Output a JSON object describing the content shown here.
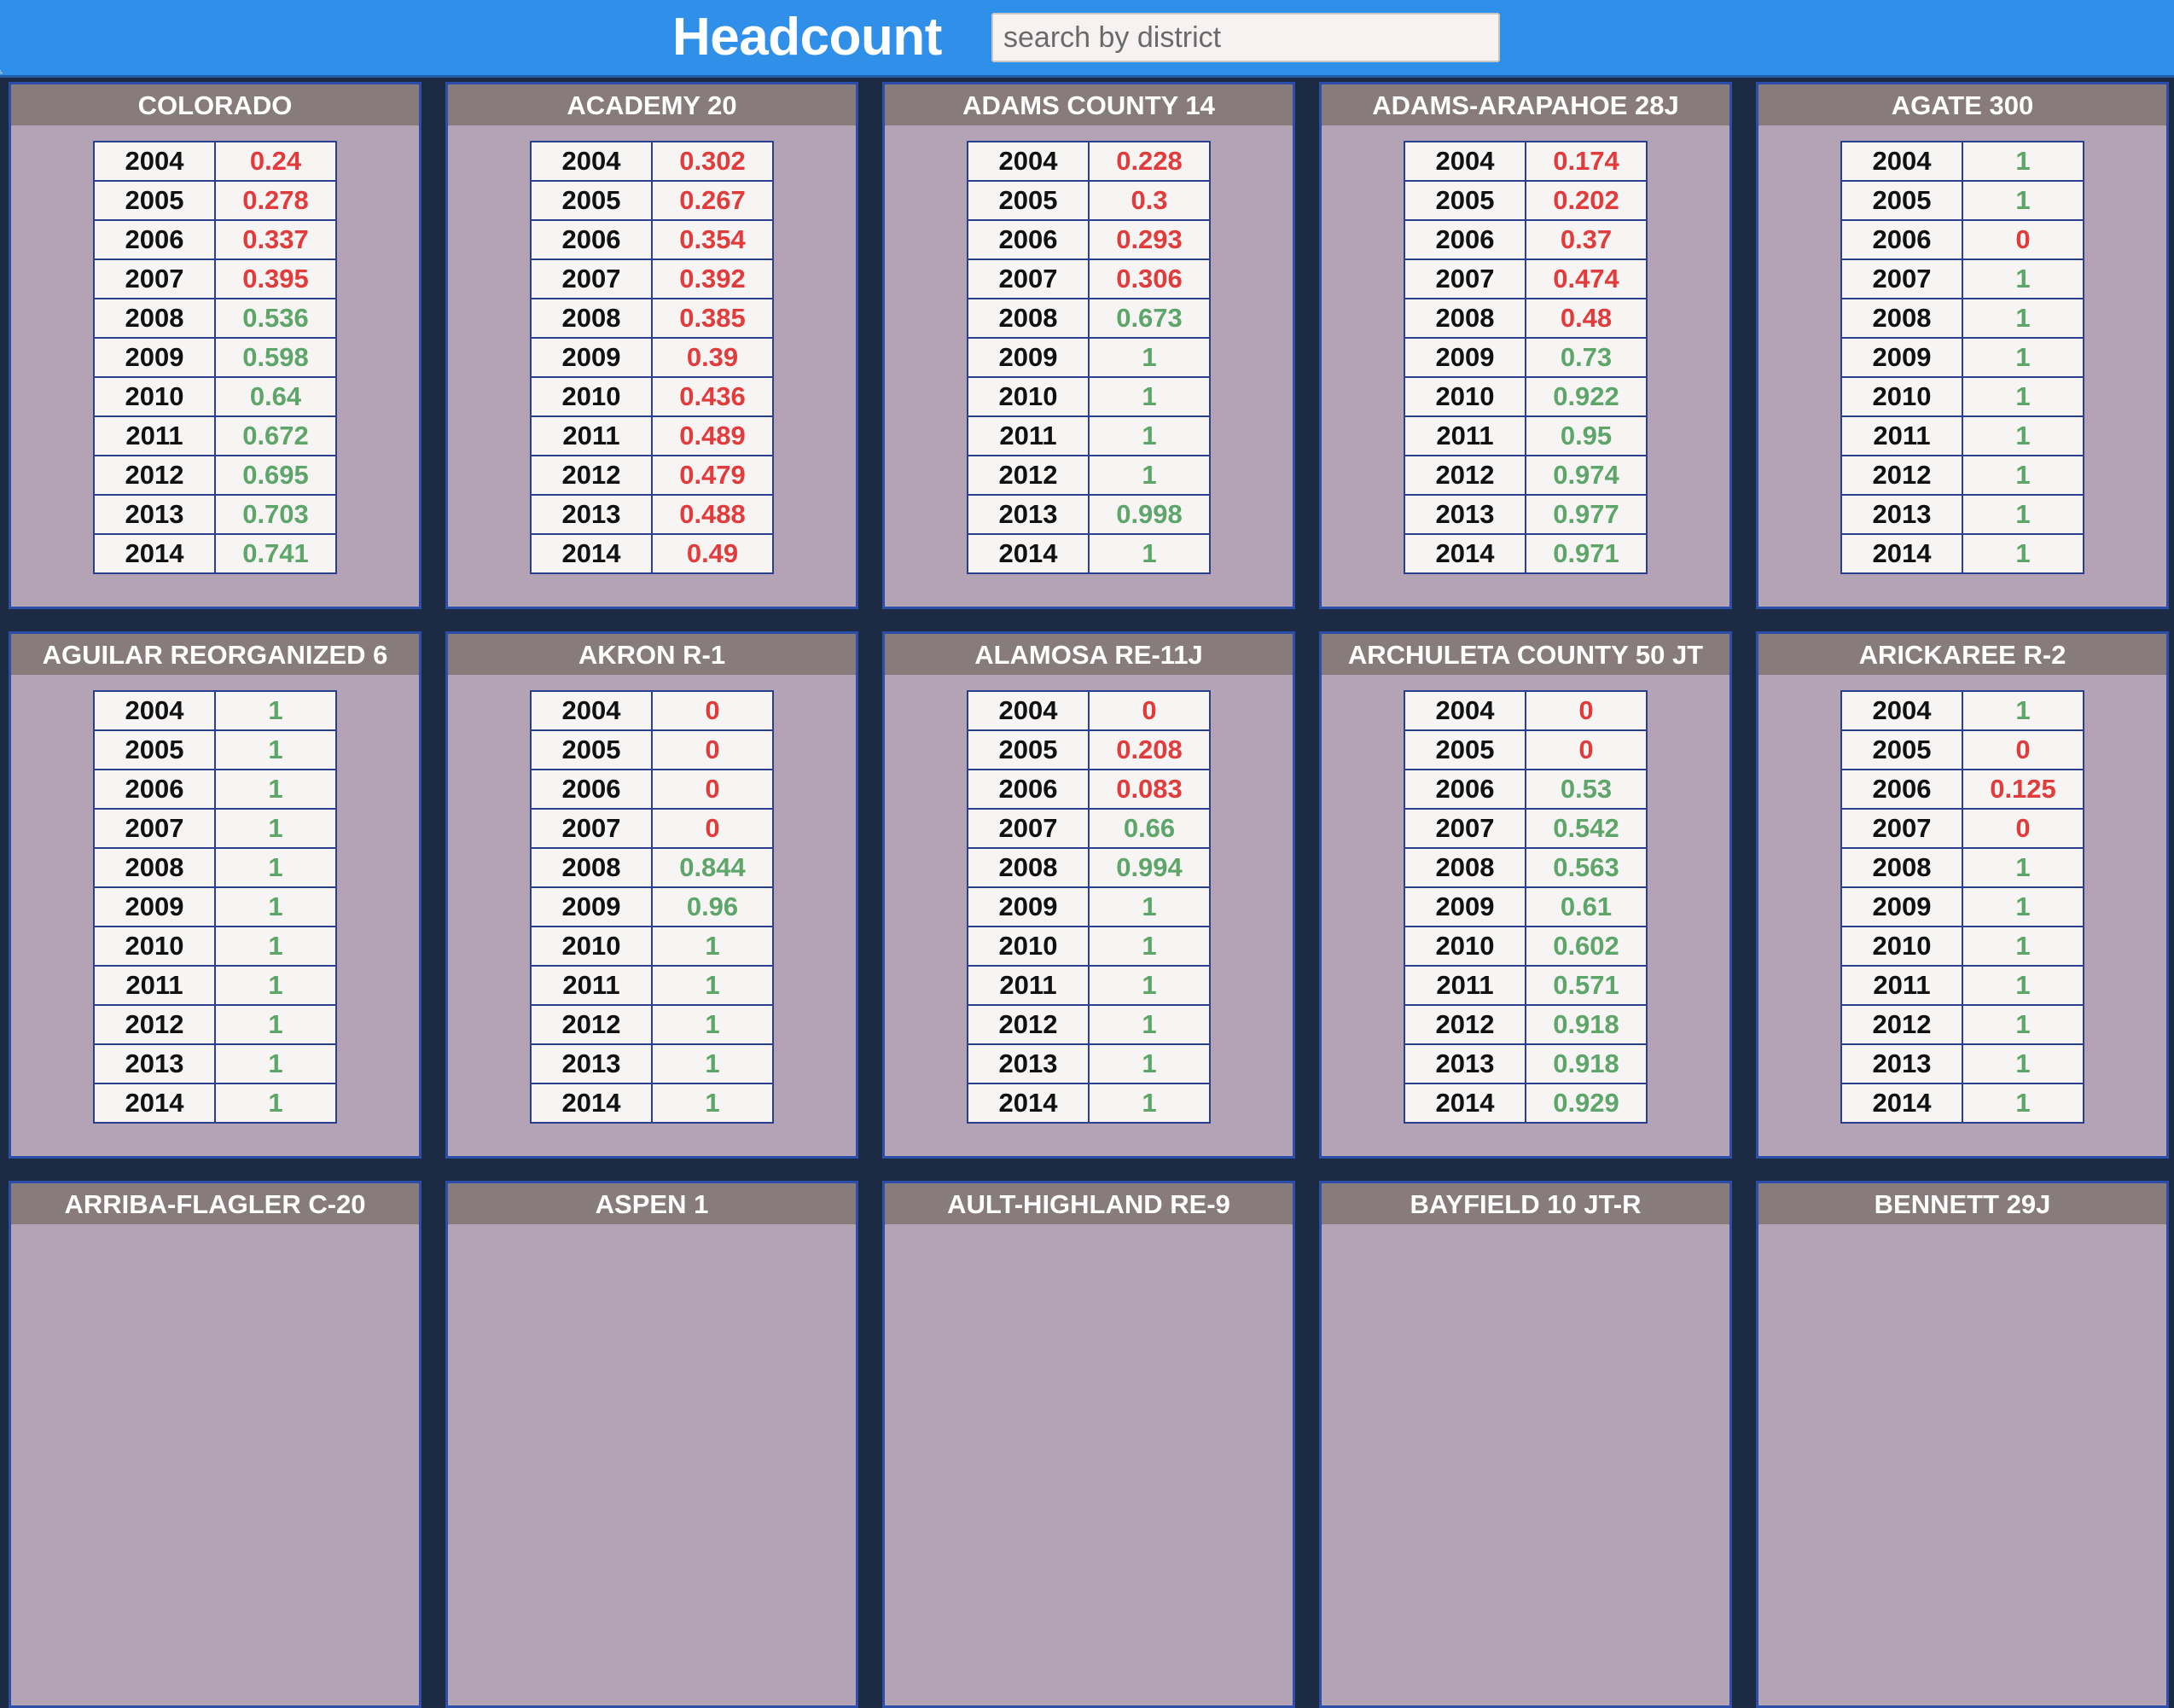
{
  "header": {
    "title": "Headcount",
    "search_placeholder": "search by district"
  },
  "colors": {
    "low_value": "#e23b3b",
    "high_value": "#5ea56a",
    "header_bar": "#2f8fe9",
    "card_bg": "#b3a3b4",
    "card_title_bg": "#877b7c"
  },
  "districts": [
    {
      "name": "COLORADO",
      "rows": [
        [
          "2004",
          "0.24"
        ],
        [
          "2005",
          "0.278"
        ],
        [
          "2006",
          "0.337"
        ],
        [
          "2007",
          "0.395"
        ],
        [
          "2008",
          "0.536"
        ],
        [
          "2009",
          "0.598"
        ],
        [
          "2010",
          "0.64"
        ],
        [
          "2011",
          "0.672"
        ],
        [
          "2012",
          "0.695"
        ],
        [
          "2013",
          "0.703"
        ],
        [
          "2014",
          "0.741"
        ]
      ]
    },
    {
      "name": "ACADEMY 20",
      "rows": [
        [
          "2004",
          "0.302"
        ],
        [
          "2005",
          "0.267"
        ],
        [
          "2006",
          "0.354"
        ],
        [
          "2007",
          "0.392"
        ],
        [
          "2008",
          "0.385"
        ],
        [
          "2009",
          "0.39"
        ],
        [
          "2010",
          "0.436"
        ],
        [
          "2011",
          "0.489"
        ],
        [
          "2012",
          "0.479"
        ],
        [
          "2013",
          "0.488"
        ],
        [
          "2014",
          "0.49"
        ]
      ]
    },
    {
      "name": "ADAMS COUNTY 14",
      "rows": [
        [
          "2004",
          "0.228"
        ],
        [
          "2005",
          "0.3"
        ],
        [
          "2006",
          "0.293"
        ],
        [
          "2007",
          "0.306"
        ],
        [
          "2008",
          "0.673"
        ],
        [
          "2009",
          "1"
        ],
        [
          "2010",
          "1"
        ],
        [
          "2011",
          "1"
        ],
        [
          "2012",
          "1"
        ],
        [
          "2013",
          "0.998"
        ],
        [
          "2014",
          "1"
        ]
      ]
    },
    {
      "name": "ADAMS-ARAPAHOE 28J",
      "rows": [
        [
          "2004",
          "0.174"
        ],
        [
          "2005",
          "0.202"
        ],
        [
          "2006",
          "0.37"
        ],
        [
          "2007",
          "0.474"
        ],
        [
          "2008",
          "0.48"
        ],
        [
          "2009",
          "0.73"
        ],
        [
          "2010",
          "0.922"
        ],
        [
          "2011",
          "0.95"
        ],
        [
          "2012",
          "0.974"
        ],
        [
          "2013",
          "0.977"
        ],
        [
          "2014",
          "0.971"
        ]
      ]
    },
    {
      "name": "AGATE 300",
      "rows": [
        [
          "2004",
          "1"
        ],
        [
          "2005",
          "1"
        ],
        [
          "2006",
          "0"
        ],
        [
          "2007",
          "1"
        ],
        [
          "2008",
          "1"
        ],
        [
          "2009",
          "1"
        ],
        [
          "2010",
          "1"
        ],
        [
          "2011",
          "1"
        ],
        [
          "2012",
          "1"
        ],
        [
          "2013",
          "1"
        ],
        [
          "2014",
          "1"
        ]
      ]
    },
    {
      "name": "AGUILAR REORGANIZED 6",
      "rows": [
        [
          "2004",
          "1"
        ],
        [
          "2005",
          "1"
        ],
        [
          "2006",
          "1"
        ],
        [
          "2007",
          "1"
        ],
        [
          "2008",
          "1"
        ],
        [
          "2009",
          "1"
        ],
        [
          "2010",
          "1"
        ],
        [
          "2011",
          "1"
        ],
        [
          "2012",
          "1"
        ],
        [
          "2013",
          "1"
        ],
        [
          "2014",
          "1"
        ]
      ]
    },
    {
      "name": "AKRON R-1",
      "rows": [
        [
          "2004",
          "0"
        ],
        [
          "2005",
          "0"
        ],
        [
          "2006",
          "0"
        ],
        [
          "2007",
          "0"
        ],
        [
          "2008",
          "0.844"
        ],
        [
          "2009",
          "0.96"
        ],
        [
          "2010",
          "1"
        ],
        [
          "2011",
          "1"
        ],
        [
          "2012",
          "1"
        ],
        [
          "2013",
          "1"
        ],
        [
          "2014",
          "1"
        ]
      ]
    },
    {
      "name": "ALAMOSA RE-11J",
      "rows": [
        [
          "2004",
          "0"
        ],
        [
          "2005",
          "0.208"
        ],
        [
          "2006",
          "0.083"
        ],
        [
          "2007",
          "0.66"
        ],
        [
          "2008",
          "0.994"
        ],
        [
          "2009",
          "1"
        ],
        [
          "2010",
          "1"
        ],
        [
          "2011",
          "1"
        ],
        [
          "2012",
          "1"
        ],
        [
          "2013",
          "1"
        ],
        [
          "2014",
          "1"
        ]
      ]
    },
    {
      "name": "ARCHULETA COUNTY 50 JT",
      "rows": [
        [
          "2004",
          "0"
        ],
        [
          "2005",
          "0"
        ],
        [
          "2006",
          "0.53"
        ],
        [
          "2007",
          "0.542"
        ],
        [
          "2008",
          "0.563"
        ],
        [
          "2009",
          "0.61"
        ],
        [
          "2010",
          "0.602"
        ],
        [
          "2011",
          "0.571"
        ],
        [
          "2012",
          "0.918"
        ],
        [
          "2013",
          "0.918"
        ],
        [
          "2014",
          "0.929"
        ]
      ]
    },
    {
      "name": "ARICKAREE R-2",
      "rows": [
        [
          "2004",
          "1"
        ],
        [
          "2005",
          "0"
        ],
        [
          "2006",
          "0.125"
        ],
        [
          "2007",
          "0"
        ],
        [
          "2008",
          "1"
        ],
        [
          "2009",
          "1"
        ],
        [
          "2010",
          "1"
        ],
        [
          "2011",
          "1"
        ],
        [
          "2012",
          "1"
        ],
        [
          "2013",
          "1"
        ],
        [
          "2014",
          "1"
        ]
      ]
    },
    {
      "name": "ARRIBA-FLAGLER C-20",
      "rows": []
    },
    {
      "name": "ASPEN 1",
      "rows": []
    },
    {
      "name": "AULT-HIGHLAND RE-9",
      "rows": []
    },
    {
      "name": "BAYFIELD 10 JT-R",
      "rows": []
    },
    {
      "name": "BENNETT 29J",
      "rows": []
    }
  ]
}
